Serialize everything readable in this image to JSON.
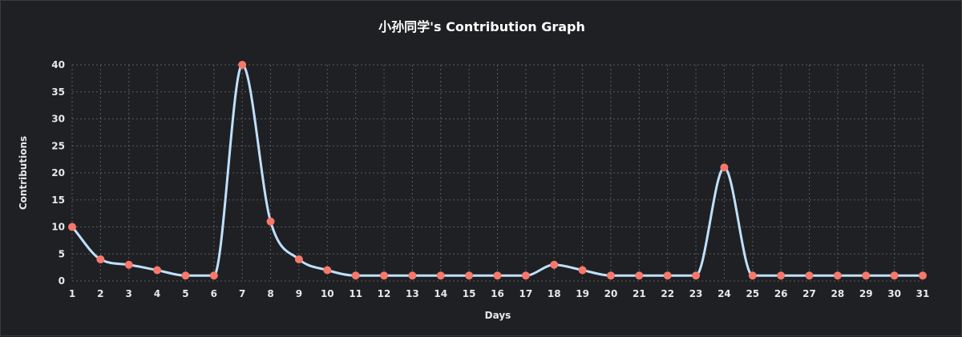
{
  "chart_data": {
    "type": "line",
    "title": "小孙同学's Contribution Graph",
    "xlabel": "Days",
    "ylabel": "Contributions",
    "categories": [
      "1",
      "2",
      "3",
      "4",
      "5",
      "6",
      "7",
      "8",
      "9",
      "10",
      "11",
      "12",
      "13",
      "14",
      "15",
      "16",
      "17",
      "18",
      "19",
      "20",
      "21",
      "22",
      "23",
      "24",
      "25",
      "26",
      "27",
      "28",
      "29",
      "30",
      "31"
    ],
    "series": [
      {
        "name": "Contributions",
        "values": [
          10,
          4,
          3,
          2,
          1,
          1,
          40,
          11,
          4,
          2,
          1,
          1,
          1,
          1,
          1,
          1,
          1,
          3,
          2,
          1,
          1,
          1,
          1,
          21,
          1,
          1,
          1,
          1,
          1,
          1,
          1
        ]
      }
    ],
    "yticks": [
      "0",
      "5",
      "10",
      "15",
      "20",
      "25",
      "30",
      "35",
      "40"
    ],
    "ylim": [
      0,
      40
    ],
    "grid": true,
    "legend": "none",
    "colors": {
      "background": "#1f2023",
      "line": "#bfe0ff",
      "point": "#f7786b",
      "grid": "#5a5b5f",
      "text": "#e8e8e8"
    }
  }
}
